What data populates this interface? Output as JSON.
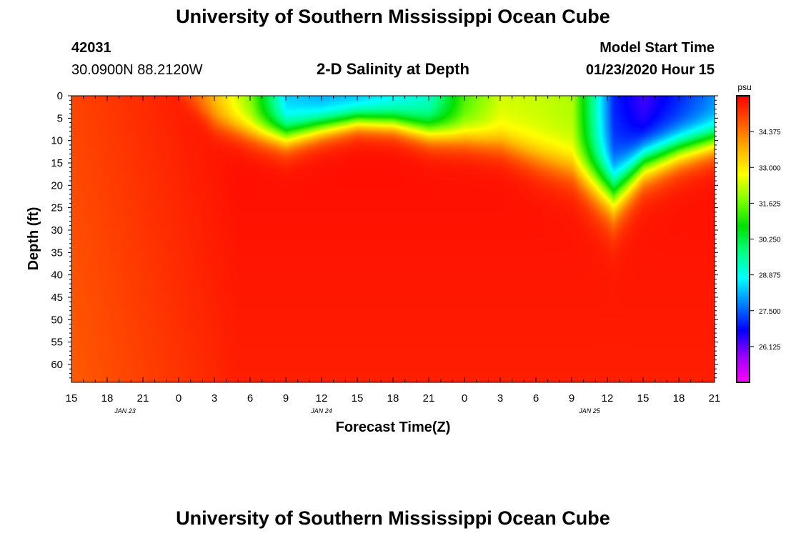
{
  "page": {
    "title": "University of Southern Mississippi Ocean Cube",
    "footer_title": "University of Southern Mississippi Ocean Cube"
  },
  "station": {
    "id": "42031",
    "location": "30.0900N 88.2120W"
  },
  "model": {
    "label": "Model Start Time",
    "start": "01/23/2020 Hour 15"
  },
  "chart_data": {
    "type": "heatmap",
    "title": "2-D Salinity at Depth",
    "xlabel": "Forecast Time(Z)",
    "ylabel": "Depth (ft)",
    "x_tick_labels": [
      "15",
      "18",
      "21",
      "0",
      "3",
      "6",
      "9",
      "12",
      "15",
      "18",
      "21",
      "0",
      "3",
      "6",
      "9",
      "12",
      "15",
      "18",
      "21"
    ],
    "x_hours": [
      0,
      3,
      6,
      9,
      12,
      15,
      18,
      21,
      24,
      27,
      30,
      33,
      36,
      39,
      42,
      45,
      48,
      51,
      54
    ],
    "date_labels": [
      {
        "label": "JAN 23",
        "hour": 4.5
      },
      {
        "label": "JAN 24",
        "hour": 21
      },
      {
        "label": "JAN 25",
        "hour": 43.5
      }
    ],
    "y_ticks": [
      0,
      5,
      10,
      15,
      20,
      25,
      30,
      35,
      40,
      45,
      50,
      55,
      60
    ],
    "xlim": [
      0,
      54
    ],
    "ylim": [
      0,
      64
    ],
    "colorbar": {
      "unit": "psu",
      "tick_labels": [
        "34.375",
        "33.000",
        "31.625",
        "30.250",
        "28.875",
        "27.500",
        "26.125"
      ],
      "range": [
        24.75,
        35.75
      ],
      "colors": [
        "#ff00ff",
        "#9b00ff",
        "#0000ff",
        "#0080ff",
        "#00ffff",
        "#00ff80",
        "#00e000",
        "#80ff00",
        "#ffff00",
        "#ffb000",
        "#ff5500",
        "#ff0000"
      ]
    },
    "surface_layer": [
      {
        "h": 0,
        "s": 34.9,
        "d": 0
      },
      {
        "h": 9,
        "s": 35.0,
        "d": 0
      },
      {
        "h": 10.5,
        "s": 34.5,
        "d": 3
      },
      {
        "h": 12,
        "s": 33.6,
        "d": 6
      },
      {
        "h": 15,
        "s": 31.7,
        "d": 8
      },
      {
        "h": 18,
        "s": 28.3,
        "d": 9
      },
      {
        "h": 21,
        "s": 28.0,
        "d": 7
      },
      {
        "h": 24,
        "s": 28.1,
        "d": 5.5
      },
      {
        "h": 27,
        "s": 28.6,
        "d": 6
      },
      {
        "h": 30,
        "s": 29.1,
        "d": 8
      },
      {
        "h": 33,
        "s": 31.3,
        "d": 9
      },
      {
        "h": 36,
        "s": 32.4,
        "d": 10.5
      },
      {
        "h": 39,
        "s": 32.3,
        "d": 13.5
      },
      {
        "h": 42,
        "s": 32.1,
        "d": 16
      },
      {
        "h": 45.5,
        "s": 27.0,
        "d": 22
      },
      {
        "h": 48,
        "s": 26.3,
        "d": 15
      },
      {
        "h": 51,
        "s": 27.0,
        "d": 12
      },
      {
        "h": 54,
        "s": 27.8,
        "d": 10
      }
    ]
  }
}
